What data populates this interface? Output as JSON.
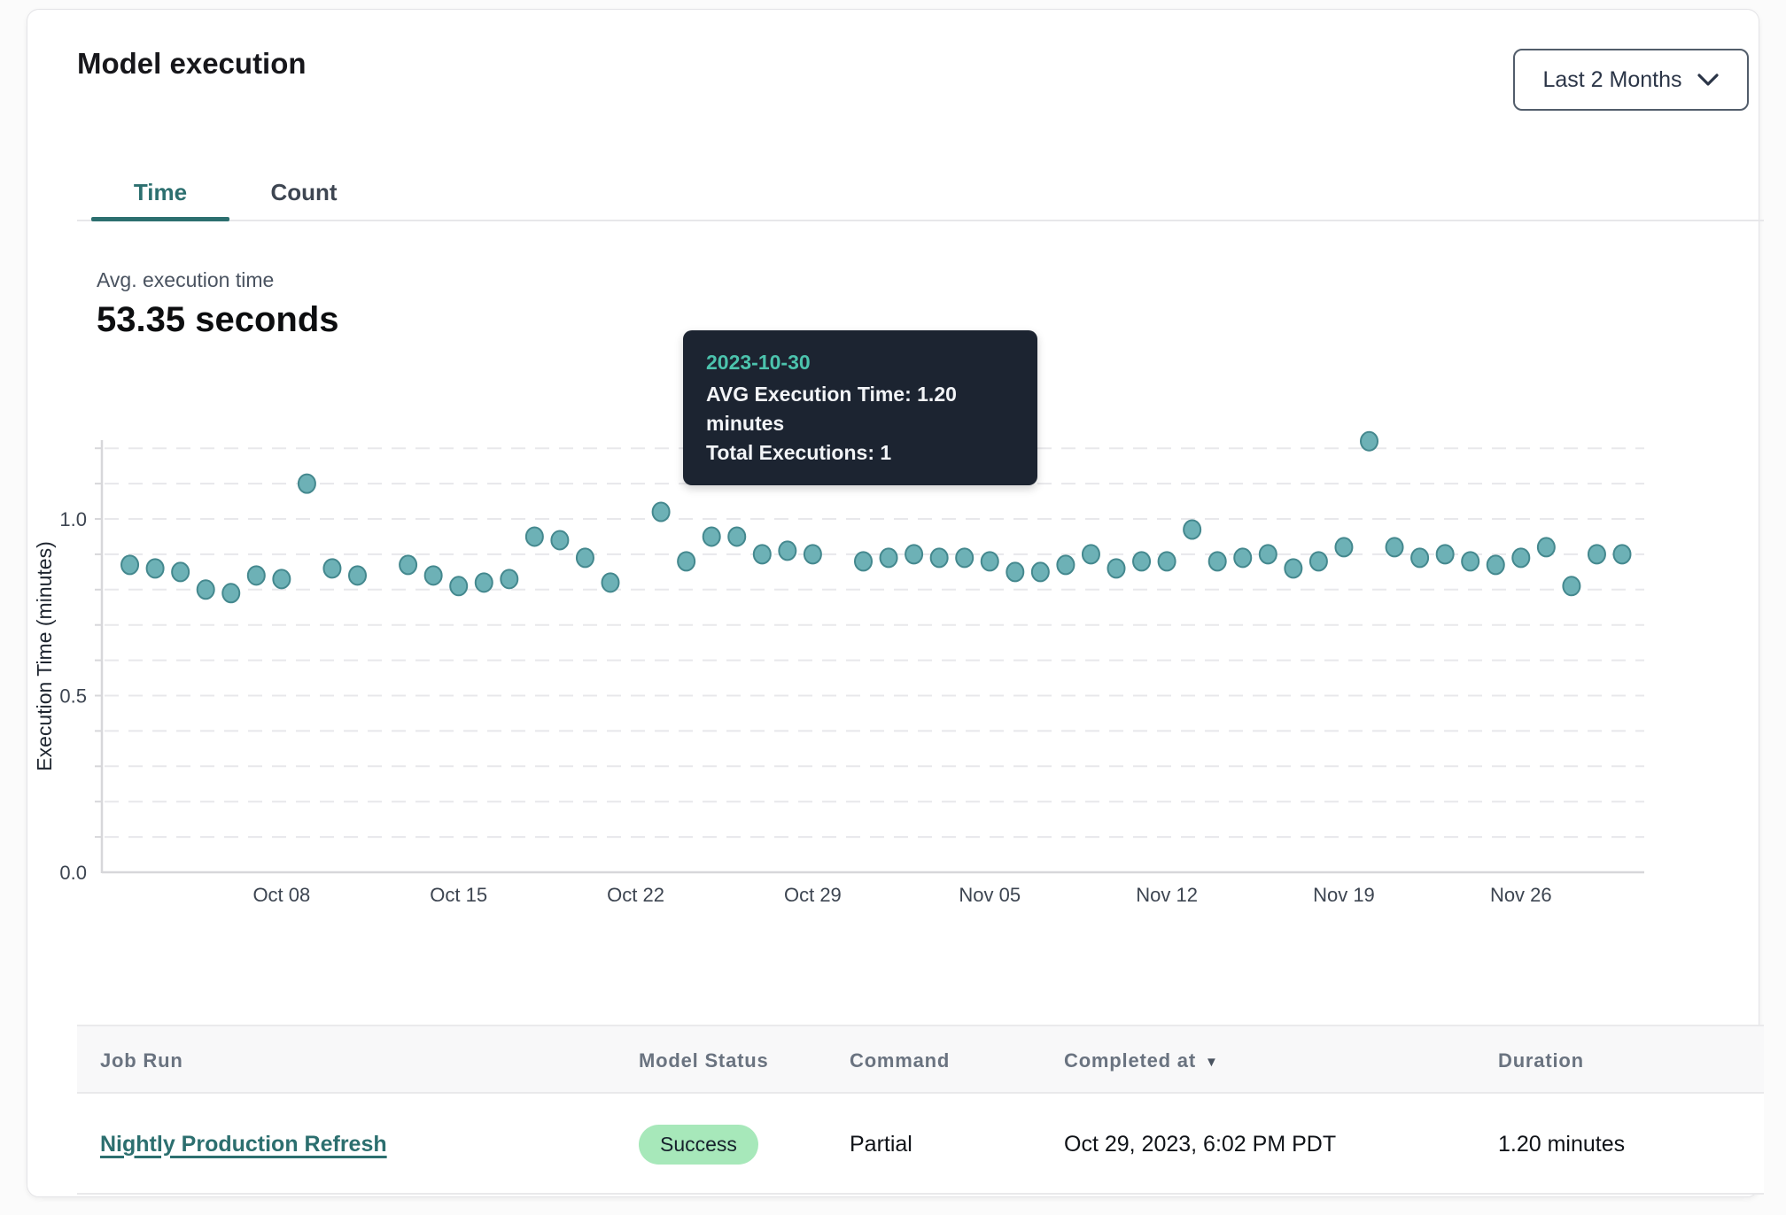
{
  "header": {
    "title": "Model execution",
    "range_selector": {
      "label": "Last 2 Months",
      "icon": "chevron-down"
    }
  },
  "tabs": [
    {
      "label": "Time",
      "active": true
    },
    {
      "label": "Count",
      "active": false
    }
  ],
  "summary": {
    "label": "Avg. execution time",
    "value": "53.35 seconds"
  },
  "tooltip": {
    "date": "2023-10-30",
    "avg_line": "AVG Execution Time: 1.20 minutes",
    "total_line": "Total Executions: 1"
  },
  "chart_data": {
    "type": "scatter",
    "title": "",
    "xlabel": "",
    "ylabel": "Execution Time (minutes)",
    "ylim": [
      0,
      1.25
    ],
    "yticks": [
      0.0,
      0.5,
      1.0
    ],
    "grid": "horizontal-dashed-every-0.1",
    "legend_position": "none",
    "x_ticks": [
      {
        "label": "Oct 08",
        "day": 7
      },
      {
        "label": "Oct 15",
        "day": 14
      },
      {
        "label": "Oct 22",
        "day": 21
      },
      {
        "label": "Oct 29",
        "day": 28
      },
      {
        "label": "Nov 05",
        "day": 35
      },
      {
        "label": "Nov 12",
        "day": 42
      },
      {
        "label": "Nov 19",
        "day": 49
      },
      {
        "label": "Nov 26",
        "day": 56
      }
    ],
    "highlighted_date": "2023-10-30",
    "point_format": [
      "date",
      "day_offset_from_oct_1",
      "avg_execution_minutes"
    ],
    "series": [
      {
        "name": "AVG Execution Time",
        "unit": "minutes",
        "points": [
          [
            "2023-10-02",
            1,
            0.87
          ],
          [
            "2023-10-03",
            2,
            0.86
          ],
          [
            "2023-10-04",
            3,
            0.85
          ],
          [
            "2023-10-05",
            4,
            0.8
          ],
          [
            "2023-10-06",
            5,
            0.79
          ],
          [
            "2023-10-07",
            6,
            0.84
          ],
          [
            "2023-10-08",
            7,
            0.83
          ],
          [
            "2023-10-09",
            8,
            1.1
          ],
          [
            "2023-10-10",
            9,
            0.86
          ],
          [
            "2023-10-11",
            10,
            0.84
          ],
          [
            "2023-10-13",
            12,
            0.87
          ],
          [
            "2023-10-14",
            13,
            0.84
          ],
          [
            "2023-10-15",
            14,
            0.81
          ],
          [
            "2023-10-16",
            15,
            0.82
          ],
          [
            "2023-10-17",
            16,
            0.83
          ],
          [
            "2023-10-18",
            17,
            0.95
          ],
          [
            "2023-10-19",
            18,
            0.94
          ],
          [
            "2023-10-20",
            19,
            0.89
          ],
          [
            "2023-10-21",
            20,
            0.82
          ],
          [
            "2023-10-23",
            22,
            1.02
          ],
          [
            "2023-10-24",
            23,
            0.88
          ],
          [
            "2023-10-25",
            24,
            0.95
          ],
          [
            "2023-10-26",
            25,
            0.95
          ],
          [
            "2023-10-27",
            26,
            0.9
          ],
          [
            "2023-10-28",
            27,
            0.91
          ],
          [
            "2023-10-29",
            28,
            0.9
          ],
          [
            "2023-10-30",
            29,
            1.2
          ],
          [
            "2023-10-31",
            30,
            0.88
          ],
          [
            "2023-11-01",
            31,
            0.89
          ],
          [
            "2023-11-02",
            32,
            0.9
          ],
          [
            "2023-11-03",
            33,
            0.89
          ],
          [
            "2023-11-04",
            34,
            0.89
          ],
          [
            "2023-11-05",
            35,
            0.88
          ],
          [
            "2023-11-06",
            36,
            0.85
          ],
          [
            "2023-11-07",
            37,
            0.85
          ],
          [
            "2023-11-08",
            38,
            0.87
          ],
          [
            "2023-11-09",
            39,
            0.9
          ],
          [
            "2023-11-10",
            40,
            0.86
          ],
          [
            "2023-11-11",
            41,
            0.88
          ],
          [
            "2023-11-12",
            42,
            0.88
          ],
          [
            "2023-11-13",
            43,
            0.97
          ],
          [
            "2023-11-14",
            44,
            0.88
          ],
          [
            "2023-11-15",
            45,
            0.89
          ],
          [
            "2023-11-16",
            46,
            0.9
          ],
          [
            "2023-11-17",
            47,
            0.86
          ],
          [
            "2023-11-18",
            48,
            0.88
          ],
          [
            "2023-11-19",
            49,
            0.92
          ],
          [
            "2023-11-20",
            50,
            1.22
          ],
          [
            "2023-11-21",
            51,
            0.92
          ],
          [
            "2023-11-22",
            52,
            0.89
          ],
          [
            "2023-11-23",
            53,
            0.9
          ],
          [
            "2023-11-24",
            54,
            0.88
          ],
          [
            "2023-11-25",
            55,
            0.87
          ],
          [
            "2023-11-26",
            56,
            0.89
          ],
          [
            "2023-11-27",
            57,
            0.92
          ],
          [
            "2023-11-28",
            58,
            0.81
          ],
          [
            "2023-11-29",
            59,
            0.9
          ],
          [
            "2023-11-30",
            60,
            0.9
          ]
        ]
      }
    ]
  },
  "table": {
    "columns": [
      {
        "label": "Job Run",
        "sortable": false
      },
      {
        "label": "Model Status",
        "sortable": false
      },
      {
        "label": "Command",
        "sortable": false
      },
      {
        "label": "Completed at",
        "sortable": true,
        "sort": "desc",
        "sort_icon": "triangle-down"
      },
      {
        "label": "Duration",
        "sortable": false
      }
    ],
    "rows": [
      {
        "job_run": "Nightly Production Refresh",
        "model_status": "Success",
        "command": "Partial",
        "completed_at": "Oct 29, 2023, 6:02 PM PDT",
        "duration": "1.20 minutes"
      }
    ]
  },
  "colors": {
    "accent_teal": "#2c6f6f",
    "dot_fill": "#6db1b6",
    "dot_stroke": "#44888e",
    "dot_highlight_fill": "#4e8890",
    "dot_highlight_stroke": "#38707a",
    "tooltip_bg": "#1c2431",
    "tooltip_date": "#4cc3ad",
    "badge_bg": "#a7e8ba",
    "badge_text": "#16212c",
    "gridline": "#e8e8eb",
    "axis": "#d7d7da"
  }
}
